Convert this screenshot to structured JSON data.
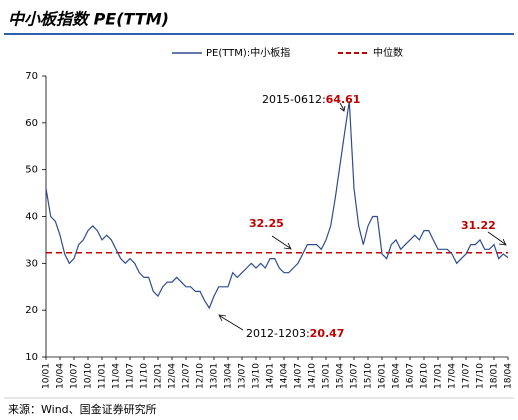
{
  "chart_data": {
    "type": "line",
    "title": "中小板指数 PE(TTM)",
    "categories": [
      "10/01",
      null,
      null,
      "10/04",
      null,
      null,
      "10/07",
      null,
      null,
      "10/10",
      null,
      null,
      "11/01",
      null,
      null,
      "11/04",
      null,
      null,
      "11/07",
      null,
      null,
      "11/10",
      null,
      null,
      "12/01",
      null,
      null,
      "12/04",
      null,
      null,
      "12/07",
      null,
      null,
      "12/10",
      null,
      null,
      "13/01",
      null,
      null,
      "13/04",
      null,
      null,
      "13/07",
      null,
      null,
      "13/10",
      null,
      null,
      "14/01",
      null,
      null,
      "14/04",
      null,
      null,
      "14/07",
      null,
      null,
      "14/10",
      null,
      null,
      "15/01",
      null,
      null,
      "15/04",
      null,
      null,
      "15/07",
      null,
      null,
      "15/10",
      null,
      null,
      "16/01",
      null,
      null,
      "16/04",
      null,
      null,
      "16/07",
      null,
      null,
      "16/10",
      null,
      null,
      "17/01",
      null,
      null,
      "17/04",
      null,
      null,
      "17/07",
      null,
      null,
      "17/10",
      null,
      null,
      "18/01",
      null,
      null,
      "18/04"
    ],
    "series": [
      {
        "name": "PE(TTM):中小板指",
        "color": "#2e4d8f",
        "values": [
          46,
          40,
          39,
          36,
          32,
          30,
          31,
          34,
          35,
          37,
          38,
          37,
          35,
          36,
          35,
          33,
          31,
          30,
          31,
          30,
          28,
          27,
          27,
          24,
          23,
          25,
          26,
          26,
          27,
          26,
          25,
          25,
          24,
          24,
          22,
          20.47,
          23,
          25,
          25,
          25,
          28,
          27,
          28,
          29,
          30,
          29,
          30,
          29,
          31,
          31,
          29,
          28,
          28,
          29,
          30,
          32,
          34,
          34,
          34,
          33,
          35,
          38,
          44,
          51,
          58,
          64.61,
          46,
          38,
          34,
          38,
          40,
          40,
          32,
          31,
          34,
          35,
          33,
          34,
          35,
          36,
          35,
          37,
          37,
          35,
          33,
          33,
          33,
          32,
          30,
          31,
          32,
          34,
          34,
          35,
          33,
          33,
          34,
          31,
          32,
          31.22
        ]
      }
    ],
    "median": {
      "name": "中位数",
      "value": 32.25,
      "color": "#c00000"
    },
    "ylim": [
      10,
      70
    ],
    "yticks": [
      10,
      20,
      30,
      40,
      50,
      60,
      70
    ],
    "annotations": [
      {
        "text": "2015-0612:",
        "value_label": "64.61"
      },
      {
        "text": "2012-1203:",
        "value_label": "20.47"
      },
      {
        "value_label": "32.25"
      },
      {
        "value_label": "31.22"
      }
    ],
    "source": "来源：Wind、国金证券研究所"
  }
}
